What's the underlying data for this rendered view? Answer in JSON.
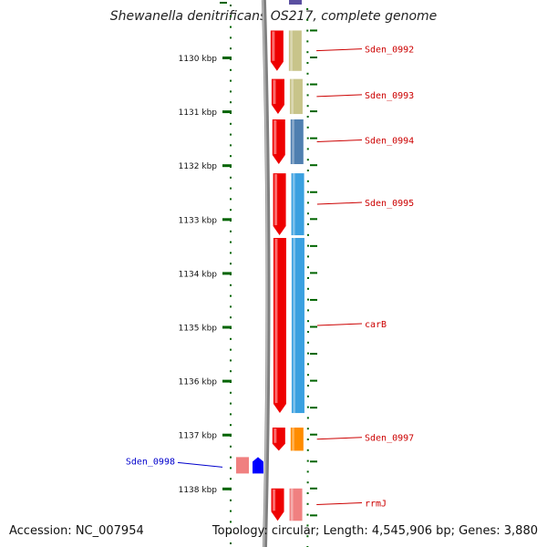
{
  "title": "Shewanella denitrificans OS217, complete genome",
  "footer": {
    "accession": "Accession: NC_007954",
    "topology": "Topology: circular; Length: 4,545,906 bp; Genes: 3,880"
  },
  "axis": {
    "unit": "kbp",
    "ticks": [
      1130,
      1131,
      1132,
      1133,
      1134,
      1135,
      1136,
      1137,
      1138
    ],
    "tick_labels": [
      "1130 kbp",
      "1131 kbp",
      "1132 kbp",
      "1133 kbp",
      "1134 kbp",
      "1135 kbp",
      "1136 kbp",
      "1137 kbp",
      "1138 kbp"
    ]
  },
  "colors": {
    "backbone": "#808080",
    "forward_strand": "#ee0000",
    "label_forward": "#cc0000",
    "label_reverse": "#0000cc",
    "tick": "#006400",
    "khaki": "#c8c48a",
    "steelblue": "#4f7fb0",
    "skyblue": "#3aa0e0",
    "orange": "#ff8c00",
    "pink": "#f08080",
    "blue": "#0000ff"
  },
  "chart_data": {
    "type": "genome-map",
    "xlabel": "",
    "ylabel": "",
    "ylim": [
      1129.3,
      1138.6
    ],
    "genes": [
      {
        "name": "Sden_0992",
        "start": 1129.5,
        "end": 1130.25,
        "strand": "+",
        "cds_color": "#c8c48a"
      },
      {
        "name": "Sden_0993",
        "start": 1130.4,
        "end": 1131.05,
        "strand": "+",
        "cds_color": "#c8c48a"
      },
      {
        "name": "Sden_0994",
        "start": 1131.15,
        "end": 1131.98,
        "strand": "+",
        "cds_color": "#4f7fb0"
      },
      {
        "name": "Sden_0995",
        "start": 1132.15,
        "end": 1133.3,
        "strand": "+",
        "cds_color": "#3aa0e0"
      },
      {
        "name": "carB",
        "start": 1133.35,
        "end": 1136.6,
        "strand": "+",
        "cds_color": "#3aa0e0"
      },
      {
        "name": "Sden_0997",
        "start": 1136.87,
        "end": 1137.3,
        "strand": "+",
        "cds_color": "#ff8c00"
      },
      {
        "name": "Sden_0998",
        "start": 1137.47,
        "end": 1137.67,
        "strand": "-",
        "cds_color": "#0000ff"
      },
      {
        "name": "rrmJ",
        "start": 1138.0,
        "end": 1138.6,
        "strand": "+",
        "cds_color": "#f08080"
      }
    ]
  }
}
